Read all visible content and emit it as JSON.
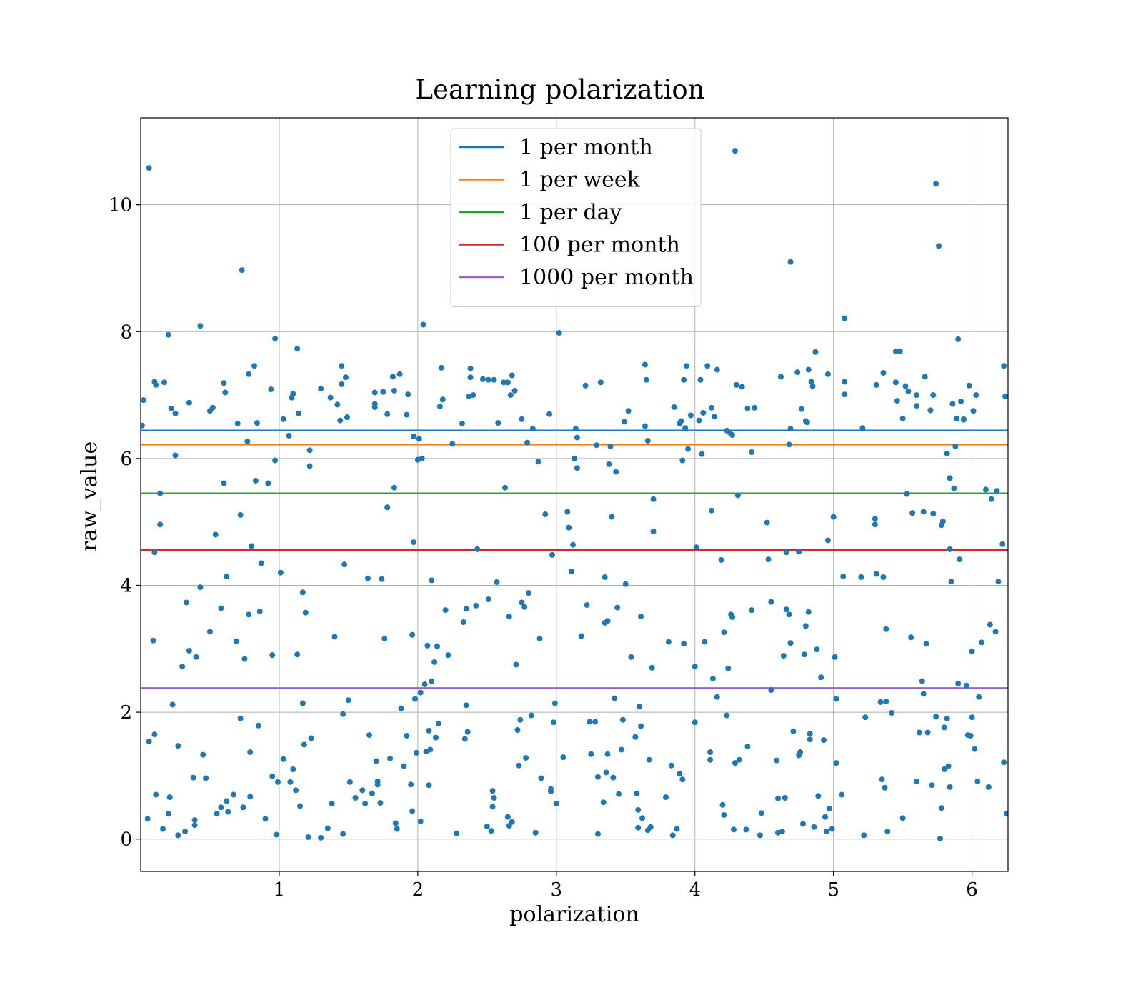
{
  "chart_data": {
    "type": "scatter",
    "title": "Learning polarization",
    "x_label": "polarization",
    "y_label": "raw_value",
    "xlim": [
      0,
      6.26
    ],
    "ylim": [
      -0.51,
      11.37
    ],
    "xticks": [
      1,
      2,
      3,
      4,
      5,
      6
    ],
    "yticks": [
      0,
      2,
      4,
      6,
      8,
      10
    ],
    "grid": true,
    "legend": "upper center",
    "point_color": "#1f77b4",
    "lines": [
      {
        "name": "1 per month",
        "color": "#1f77b4",
        "value": 6.44
      },
      {
        "name": "1 per week",
        "color": "#ff7f0e",
        "value": 6.22
      },
      {
        "name": "1 per day",
        "color": "#2ca02c",
        "value": 5.45
      },
      {
        "name": "100 per month",
        "color": "#d62728",
        "value": 4.56
      },
      {
        "name": "1000 per month",
        "color": "#9467bd",
        "value": 2.38
      }
    ],
    "points": {
      "x": [
        0.01,
        0.02,
        0.06,
        0.05,
        0.06,
        0.09,
        0.1,
        0.1,
        0.1,
        0.11,
        0.11,
        0.14,
        0.14,
        0.16,
        0.17,
        0.2,
        0.2,
        0.21,
        0.22,
        0.23,
        0.25,
        0.25,
        0.27,
        0.27,
        0.3,
        0.32,
        0.33,
        0.35,
        0.35,
        0.38,
        0.39,
        0.39,
        0.4,
        0.43,
        0.43,
        0.45,
        0.47,
        0.5,
        0.5,
        0.52,
        0.54,
        0.55,
        0.58,
        0.58,
        0.6,
        0.6,
        0.61,
        0.62,
        0.62,
        0.63,
        0.67,
        0.69,
        0.7,
        0.72,
        0.72,
        0.73,
        0.74,
        0.75,
        0.77,
        0.78,
        0.78,
        0.79,
        0.79,
        0.8,
        0.82,
        0.83,
        0.84,
        0.85,
        0.86,
        0.87,
        0.9,
        0.92,
        0.94,
        0.95,
        0.95,
        0.97,
        0.97,
        0.98,
        0.99,
        1.01,
        1.03,
        1.03,
        1.07,
        1.08,
        1.09,
        1.1,
        1.1,
        1.12,
        1.13,
        1.13,
        1.14,
        1.15,
        1.17,
        1.17,
        1.18,
        1.19,
        1.21,
        1.22,
        1.22,
        1.23,
        1.3,
        1.3,
        1.35,
        1.37,
        1.38,
        1.4,
        1.42,
        1.44,
        1.45,
        1.45,
        1.46,
        1.46,
        1.47,
        1.48,
        1.49,
        1.5,
        1.51,
        1.55,
        1.6,
        1.62,
        1.64,
        1.65,
        1.67,
        1.69,
        1.69,
        1.69,
        1.7,
        1.71,
        1.71,
        1.73,
        1.74,
        1.75,
        1.76,
        1.78,
        1.78,
        1.8,
        1.82,
        1.83,
        1.83,
        1.84,
        1.85,
        1.87,
        1.88,
        1.9,
        1.92,
        1.92,
        1.93,
        1.95,
        1.96,
        1.96,
        1.97,
        1.97,
        1.98,
        1.99,
        2.0,
        2.01,
        2.02,
        2.02,
        2.03,
        2.04,
        2.05,
        2.06,
        2.07,
        2.08,
        2.08,
        2.09,
        2.1,
        2.1,
        2.12,
        2.13,
        2.14,
        2.15,
        2.16,
        2.17,
        2.18,
        2.2,
        2.22,
        2.25,
        2.28,
        2.32,
        2.33,
        2.34,
        2.35,
        2.35,
        2.36,
        2.37,
        2.38,
        2.38,
        2.4,
        2.42,
        2.43,
        2.47,
        2.5,
        2.51,
        2.51,
        2.53,
        2.54,
        2.54,
        2.55,
        2.55,
        2.57,
        2.58,
        2.62,
        2.63,
        2.65,
        2.65,
        2.66,
        2.66,
        2.67,
        2.68,
        2.68,
        2.7,
        2.71,
        2.72,
        2.73,
        2.74,
        2.75,
        2.75,
        2.77,
        2.78,
        2.79,
        2.8,
        2.82,
        2.83,
        2.85,
        2.87,
        2.88,
        2.89,
        2.92,
        2.95,
        2.96,
        2.96,
        2.97,
        2.98,
        2.99,
        3.0,
        3.02,
        3.05,
        3.08,
        3.09,
        3.11,
        3.12,
        3.13,
        3.14,
        3.15,
        3.15,
        3.18,
        3.21,
        3.22,
        3.24,
        3.25,
        3.28,
        3.29,
        3.3,
        3.3,
        3.32,
        3.34,
        3.35,
        3.35,
        3.36,
        3.37,
        3.37,
        3.38,
        3.39,
        3.4,
        3.41,
        3.42,
        3.43,
        3.44,
        3.45,
        3.47,
        3.48,
        3.49,
        3.5,
        3.52,
        3.54,
        3.57,
        3.58,
        3.59,
        3.59,
        3.6,
        3.61,
        3.61,
        3.62,
        3.64,
        3.64,
        3.65,
        3.66,
        3.66,
        3.67,
        3.68,
        3.69,
        3.7,
        3.7,
        3.79,
        3.81,
        3.83,
        3.84,
        3.85,
        3.87,
        3.89,
        3.89,
        3.9,
        3.91,
        3.91,
        3.92,
        3.92,
        3.93,
        3.94,
        3.95,
        3.97,
        4.0,
        4.0,
        4.01,
        4.03,
        4.04,
        4.05,
        4.06,
        4.07,
        4.09,
        4.11,
        4.11,
        4.12,
        4.12,
        4.13,
        4.14,
        4.16,
        4.16,
        4.19,
        4.2,
        4.21,
        4.21,
        4.23,
        4.23,
        4.24,
        4.25,
        4.26,
        4.27,
        4.27,
        4.28,
        4.29,
        4.29,
        4.3,
        4.31,
        4.32,
        4.34,
        4.37,
        4.38,
        4.38,
        4.41,
        4.41,
        4.43,
        4.47,
        4.48,
        4.52,
        4.53,
        4.55,
        4.55,
        4.59,
        4.6,
        4.6,
        4.62,
        4.63,
        4.64,
        4.65,
        4.66,
        4.66,
        4.68,
        4.68,
        4.69,
        4.69,
        4.69,
        4.71,
        4.74,
        4.75,
        4.75,
        4.76,
        4.77,
        4.78,
        4.79,
        4.8,
        4.8,
        4.81,
        4.82,
        4.82,
        4.83,
        4.83,
        4.84,
        4.85,
        4.86,
        4.87,
        4.88,
        4.89,
        4.91,
        4.93,
        4.94,
        4.95,
        4.96,
        4.96,
        4.97,
        4.99,
        5.0,
        5.01,
        5.02,
        5.02,
        5.06,
        5.07,
        5.08,
        5.08,
        5.08,
        5.2,
        5.21,
        5.22,
        5.23,
        5.3,
        5.3,
        5.31,
        5.31,
        5.34,
        5.35,
        5.36,
        5.36,
        5.37,
        5.38,
        5.38,
        5.39,
        5.42,
        5.45,
        5.45,
        5.46,
        5.48,
        5.5,
        5.5,
        5.52,
        5.53,
        5.54,
        5.56,
        5.57,
        5.6,
        5.6,
        5.6,
        5.62,
        5.64,
        5.65,
        5.65,
        5.66,
        5.67,
        5.68,
        5.7,
        5.71,
        5.72,
        5.72,
        5.74,
        5.74,
        5.76,
        5.77,
        5.78,
        5.78,
        5.79,
        5.8,
        5.8,
        5.82,
        5.82,
        5.83,
        5.84,
        5.84,
        5.84,
        5.85,
        5.86,
        5.87,
        5.88,
        5.89,
        5.9,
        5.9,
        5.91,
        5.92,
        5.94,
        5.94,
        5.96,
        5.97,
        5.98,
        5.99,
        6.0,
        6.0,
        6.01,
        6.02,
        6.03,
        6.04,
        6.05,
        6.07,
        6.1,
        6.12,
        6.13,
        6.14,
        6.17,
        6.18,
        6.19,
        6.22,
        6.23,
        6.24,
        6.23,
        6.25
      ],
      "y": [
        6.52,
        6.92,
        1.54,
        0.32,
        10.58,
        3.13,
        4.52,
        1.65,
        7.21,
        7.16,
        0.7,
        5.45,
        4.96,
        0.16,
        7.2,
        0.4,
        7.95,
        0.66,
        6.79,
        2.12,
        6.71,
        6.05,
        0.06,
        1.47,
        2.72,
        0.12,
        3.73,
        6.88,
        2.97,
        0.97,
        0.3,
        0.22,
        2.87,
        8.09,
        3.97,
        1.33,
        0.96,
        6.75,
        3.27,
        6.8,
        4.8,
        0.4,
        3.64,
        0.5,
        5.61,
        7.19,
        7.04,
        4.14,
        0.6,
        0.43,
        0.7,
        3.12,
        6.55,
        1.9,
        5.11,
        8.97,
        0.5,
        2.84,
        6.27,
        7.33,
        3.54,
        1.37,
        0.67,
        4.62,
        7.46,
        5.65,
        6.56,
        1.79,
        3.59,
        4.35,
        0.32,
        5.61,
        7.09,
        2.9,
        0.99,
        7.89,
        5.97,
        0.07,
        0.9,
        4.2,
        1.26,
        6.62,
        6.36,
        0.9,
        6.96,
        7.02,
        1.1,
        0.77,
        2.91,
        7.73,
        6.71,
        0.52,
        2.14,
        3.89,
        1.49,
        3.57,
        0.03,
        5.88,
        6.13,
        1.59,
        7.1,
        0.02,
        0.17,
        6.96,
        0.56,
        3.19,
        6.85,
        6.6,
        7.46,
        7.17,
        1.97,
        0.08,
        4.33,
        7.28,
        6.65,
        2.19,
        0.9,
        0.65,
        0.77,
        0.56,
        4.11,
        1.64,
        0.72,
        6.86,
        6.81,
        7.04,
        1.23,
        0.91,
        0.86,
        0.57,
        4.1,
        7.05,
        3.16,
        5.23,
        6.7,
        1.27,
        7.29,
        7.07,
        5.54,
        0.25,
        0.16,
        7.33,
        2.06,
        1.15,
        1.63,
        6.69,
        7.01,
        0.86,
        3.22,
        0.44,
        4.68,
        6.35,
        2.21,
        1.36,
        5.98,
        6.31,
        0.28,
        2.31,
        6.0,
        8.11,
        2.44,
        1.38,
        3.05,
        1.71,
        0.85,
        1.41,
        2.49,
        4.08,
        2.79,
        1.6,
        3.04,
        1.82,
        6.82,
        7.43,
        6.93,
        3.61,
        2.9,
        6.23,
        0.09,
        6.55,
        3.42,
        1.58,
        2.11,
        3.63,
        1.69,
        6.98,
        7.28,
        7.42,
        7.0,
        3.68,
        4.57,
        7.25,
        0.2,
        3.78,
        7.24,
        0.13,
        0.76,
        0.51,
        0.65,
        7.24,
        4.05,
        6.56,
        7.2,
        5.54,
        0.35,
        7.2,
        0.21,
        3.51,
        7.0,
        0.27,
        7.31,
        7.07,
        2.75,
        1.72,
        1.16,
        1.88,
        6.62,
        3.73,
        3.66,
        1.28,
        6.25,
        3.88,
        1.95,
        6.47,
        0.1,
        5.95,
        3.16,
        0.96,
        5.12,
        6.7,
        0.75,
        0.79,
        4.48,
        1.84,
        2.14,
        0.56,
        7.98,
        1.29,
        5.16,
        4.91,
        4.22,
        4.64,
        6.0,
        6.47,
        6.33,
        5.85,
        3.2,
        7.15,
        3.69,
        1.85,
        1.34,
        1.85,
        6.21,
        0.98,
        0.08,
        7.2,
        0.58,
        3.41,
        4.13,
        1.05,
        1.34,
        3.44,
        5.91,
        6.19,
        5.08,
        0.97,
        2.22,
        5.79,
        3.65,
        0.71,
        1.41,
        1.88,
        6.58,
        4.02,
        6.75,
        2.87,
        1.61,
        0.72,
        0.18,
        0.46,
        2.09,
        3.51,
        1.78,
        0.33,
        6.51,
        7.48,
        7.24,
        6.28,
        0.14,
        1.25,
        0.19,
        2.7,
        5.36,
        4.85,
        0.66,
        3.11,
        1.16,
        0.06,
        6.81,
        0.16,
        6.55,
        1.03,
        6.59,
        5.97,
        0.94,
        3.08,
        7.24,
        6.48,
        7.46,
        6.15,
        6.68,
        1.84,
        2.72,
        4.6,
        6.6,
        7.24,
        6.07,
        6.72,
        3.11,
        7.46,
        1.37,
        1.25,
        6.8,
        5.18,
        2.53,
        6.66,
        7.4,
        2.24,
        4.4,
        0.54,
        0.38,
        3.26,
        6.44,
        1.95,
        2.69,
        6.41,
        3.54,
        6.37,
        3.5,
        0.15,
        1.2,
        10.85,
        7.16,
        5.42,
        1.25,
        7.13,
        0.15,
        6.79,
        1.46,
        3.61,
        6.1,
        6.8,
        0.06,
        0.41,
        4.99,
        4.41,
        3.74,
        2.35,
        1.24,
        0.64,
        0.1,
        7.29,
        0.12,
        2.89,
        0.65,
        4.52,
        3.62,
        3.54,
        6.22,
        9.1,
        6.47,
        3.09,
        1.7,
        7.36,
        1.32,
        4.53,
        1.37,
        6.78,
        0.24,
        2.91,
        3.36,
        6.59,
        6.57,
        3.58,
        7.4,
        1.57,
        1.66,
        7.21,
        7.14,
        0.19,
        7.68,
        2.99,
        0.68,
        2.55,
        1.56,
        0.35,
        0.12,
        7.33,
        4.71,
        0.48,
        0.16,
        5.08,
        2.87,
        1.2,
        2.21,
        0.7,
        4.14,
        7.21,
        7.01,
        8.21,
        4.13,
        6.48,
        0.06,
        1.92,
        4.96,
        5.05,
        7.16,
        4.18,
        2.16,
        0.94,
        7.35,
        4.13,
        0.81,
        2.17,
        3.31,
        0.12,
        1.99,
        7.2,
        7.69,
        6.91,
        7.69,
        0.33,
        6.63,
        7.14,
        5.44,
        7.06,
        3.18,
        5.14,
        7.0,
        6.83,
        0.91,
        1.68,
        2.49,
        5.16,
        2.29,
        7.29,
        3.08,
        1.68,
        6.76,
        0.85,
        7.0,
        5.13,
        1.93,
        10.33,
        9.35,
        0.01,
        0.49,
        4.95,
        5.01,
        1.1,
        1.76,
        1.9,
        6.08,
        1.15,
        5.69,
        4.57,
        0.82,
        4.06,
        6.86,
        5.53,
        6.19,
        6.63,
        7.88,
        2.45,
        4.41,
        6.9,
        6.61,
        6.62,
        2.42,
        1.64,
        7.15,
        1.63,
        2.96,
        1.92,
        6.75,
        1.42,
        7.0,
        0.91,
        2.24,
        3.1,
        5.51,
        0.82,
        3.38,
        5.36,
        3.27,
        5.49,
        4.06,
        4.65,
        7.46,
        6.98,
        1.21,
        0.4
      ]
    }
  }
}
